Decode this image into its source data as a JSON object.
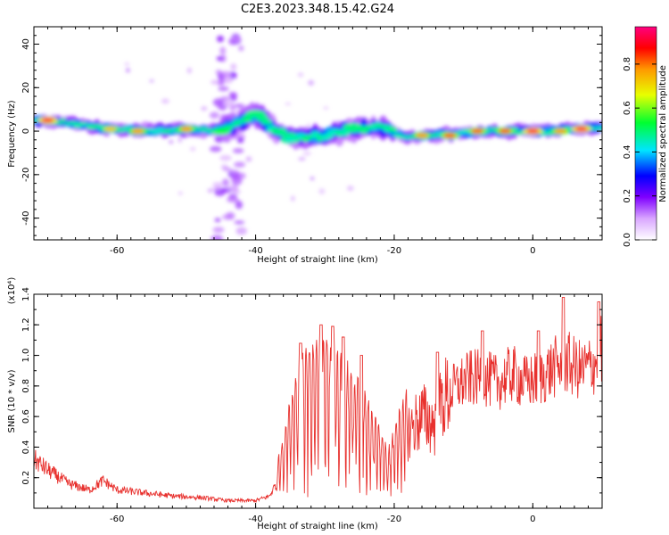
{
  "title": "C2E3.2023.348.15.42.G24",
  "chart_data": [
    {
      "type": "heatmap",
      "xlabel": "Height of straight line (km)",
      "ylabel": "Frequency (Hz)",
      "xlim": [
        -72,
        10
      ],
      "ylim": [
        -50,
        48
      ],
      "xticks": [
        -60,
        -40,
        -20,
        0
      ],
      "yticks": [
        -40,
        -20,
        0,
        20,
        40
      ],
      "colorbar": {
        "label": "Normalized spectral amplitude",
        "range": [
          0,
          0.97
        ],
        "ticks": [
          0.0,
          0.2,
          0.4,
          0.6,
          0.8
        ]
      },
      "ridge": [
        {
          "x": -71,
          "y": 5
        },
        {
          "x": -67,
          "y": 4
        },
        {
          "x": -64,
          "y": 2
        },
        {
          "x": -60,
          "y": 1
        },
        {
          "x": -55,
          "y": 0
        },
        {
          "x": -50,
          "y": 1
        },
        {
          "x": -46,
          "y": 0
        },
        {
          "x": -43,
          "y": 3
        },
        {
          "x": -40,
          "y": 8
        },
        {
          "x": -37,
          "y": 0
        },
        {
          "x": -34,
          "y": -3
        },
        {
          "x": -30,
          "y": -2
        },
        {
          "x": -26,
          "y": 1
        },
        {
          "x": -22,
          "y": 2
        },
        {
          "x": -18,
          "y": -3
        },
        {
          "x": -14,
          "y": -2
        },
        {
          "x": -10,
          "y": -1
        },
        {
          "x": -6,
          "y": 0
        },
        {
          "x": -2,
          "y": 0
        },
        {
          "x": 2,
          "y": 0
        },
        {
          "x": 6,
          "y": 1
        },
        {
          "x": 10,
          "y": 2
        }
      ],
      "hotspots": [
        {
          "x": -70,
          "y": 5,
          "amp": 0.95
        },
        {
          "x": -61,
          "y": 1,
          "amp": 0.75
        },
        {
          "x": -57,
          "y": 0,
          "amp": 0.8
        },
        {
          "x": -50,
          "y": 1,
          "amp": 0.8
        },
        {
          "x": -45,
          "y": 0,
          "amp": 0.55
        },
        {
          "x": -40,
          "y": 8,
          "amp": 0.5
        },
        {
          "x": -35,
          "y": -4,
          "amp": 0.45
        },
        {
          "x": -26,
          "y": 2,
          "amp": 0.5
        },
        {
          "x": -16,
          "y": -2,
          "amp": 0.8
        },
        {
          "x": -12,
          "y": -2,
          "amp": 0.85
        },
        {
          "x": -8,
          "y": 0,
          "amp": 0.85
        },
        {
          "x": -4,
          "y": 0,
          "amp": 0.85
        },
        {
          "x": 0,
          "y": 0,
          "amp": 0.95
        },
        {
          "x": 4,
          "y": 0,
          "amp": 0.8
        },
        {
          "x": 7,
          "y": 1,
          "amp": 0.95
        }
      ],
      "vertical_band": {
        "x": -44,
        "ylim": [
          -50,
          44
        ]
      }
    },
    {
      "type": "line",
      "xlabel": "Height of straight line (km)",
      "ylabel": "SNR (10 * v/v)",
      "yscale_label": "(x10⁴)",
      "xlim": [
        -72,
        10
      ],
      "ylim": [
        0,
        1.4
      ],
      "xticks": [
        -60,
        -40,
        -20,
        0
      ],
      "yticks": [
        0.2,
        0.4,
        0.6,
        0.8,
        1.0,
        1.2,
        1.4
      ],
      "color": "#e8312e",
      "envelope": [
        {
          "x": -72,
          "y": 0.32
        },
        {
          "x": -70,
          "y": 0.25
        },
        {
          "x": -67,
          "y": 0.16
        },
        {
          "x": -64,
          "y": 0.12
        },
        {
          "x": -62,
          "y": 0.18
        },
        {
          "x": -60,
          "y": 0.12
        },
        {
          "x": -56,
          "y": 0.1
        },
        {
          "x": -52,
          "y": 0.08
        },
        {
          "x": -48,
          "y": 0.07
        },
        {
          "x": -44,
          "y": 0.05
        },
        {
          "x": -40,
          "y": 0.05
        },
        {
          "x": -38,
          "y": 0.08
        },
        {
          "x": -36,
          "y": 0.25
        },
        {
          "x": -34,
          "y": 0.6
        },
        {
          "x": -32,
          "y": 0.7
        },
        {
          "x": -30,
          "y": 0.7
        },
        {
          "x": -28,
          "y": 0.65
        },
        {
          "x": -26,
          "y": 0.55
        },
        {
          "x": -24,
          "y": 0.45
        },
        {
          "x": -22,
          "y": 0.3
        },
        {
          "x": -21,
          "y": 0.2
        },
        {
          "x": -20,
          "y": 0.3
        },
        {
          "x": -18,
          "y": 0.5
        },
        {
          "x": -16,
          "y": 0.6
        },
        {
          "x": -14,
          "y": 0.55
        },
        {
          "x": -13,
          "y": 0.7
        },
        {
          "x": -11,
          "y": 0.8
        },
        {
          "x": -9,
          "y": 0.85
        },
        {
          "x": -7,
          "y": 0.85
        },
        {
          "x": -5,
          "y": 0.82
        },
        {
          "x": -3,
          "y": 0.88
        },
        {
          "x": -1,
          "y": 0.82
        },
        {
          "x": 1,
          "y": 0.85
        },
        {
          "x": 3,
          "y": 0.92
        },
        {
          "x": 5,
          "y": 0.95
        },
        {
          "x": 7,
          "y": 0.9
        },
        {
          "x": 9,
          "y": 0.95
        },
        {
          "x": 10,
          "y": 1.05
        }
      ],
      "peaks": [
        {
          "x": -33.5,
          "y": 1.08
        },
        {
          "x": -30.6,
          "y": 1.2
        },
        {
          "x": -28.9,
          "y": 1.19
        },
        {
          "x": -27.4,
          "y": 1.12
        },
        {
          "x": -24.7,
          "y": 1.0
        },
        {
          "x": -13.8,
          "y": 1.02
        },
        {
          "x": -7.3,
          "y": 1.16
        },
        {
          "x": 0.8,
          "y": 1.16
        },
        {
          "x": 4.4,
          "y": 1.38
        },
        {
          "x": 9.5,
          "y": 1.35
        }
      ]
    }
  ]
}
